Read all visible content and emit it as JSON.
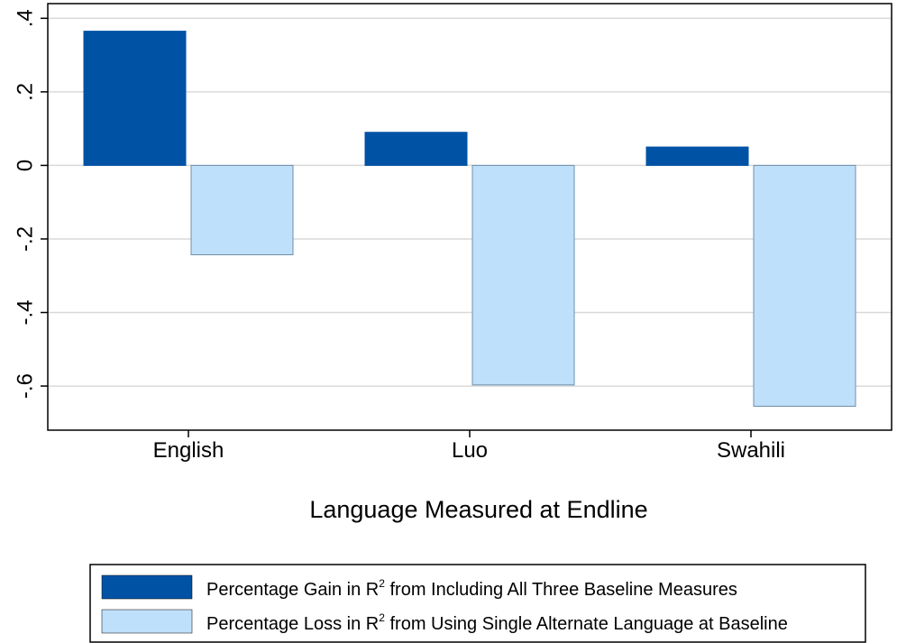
{
  "chart_data": {
    "type": "bar",
    "categories": [
      "English",
      "Luo",
      "Swahili"
    ],
    "series": [
      {
        "name": "Percentage Gain in R² from Including All Three Baseline Measures",
        "values": [
          0.365,
          0.09,
          0.05
        ],
        "color": "#0052a5"
      },
      {
        "name": "Percentage  Loss in R² from Using Single Alternate Language at Baseline",
        "values": [
          -0.243,
          -0.597,
          -0.655
        ],
        "color": "#bfe0fb"
      }
    ],
    "xlabel": "Language Measured at Endline",
    "ylabel": "",
    "ylim": [
      -0.72,
      0.44
    ],
    "yticks": [
      -0.6,
      -0.4,
      -0.2,
      0,
      0.2,
      0.4
    ],
    "ytick_labels": [
      "-.6",
      "-.4",
      "-.2",
      "0",
      ".2",
      ".4"
    ],
    "grid": true,
    "legend_position": "bottom"
  },
  "legend": {
    "items": [
      {
        "prefix": "Percentage Gain in R",
        "sup": "2",
        "suffix": " from Including All Three Baseline Measures"
      },
      {
        "prefix": "Percentage  Loss in R",
        "sup": "2",
        "suffix": " from Using Single Alternate Language at Baseline"
      }
    ]
  }
}
